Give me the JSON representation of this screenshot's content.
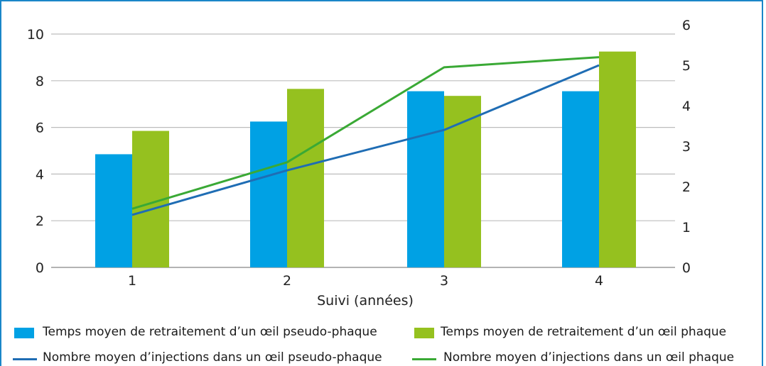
{
  "chart_data": {
    "type": "bar",
    "xlabel": "Suivi (années)",
    "categories": [
      "1",
      "2",
      "3",
      "4"
    ],
    "yleft": {
      "ticks": [
        "0",
        "2",
        "4",
        "6",
        "8",
        "10"
      ],
      "range": [
        0,
        10
      ]
    },
    "yright": {
      "ticks": [
        "0",
        "1",
        "2",
        "3",
        "4",
        "5",
        "6"
      ],
      "range": [
        0,
        6
      ]
    },
    "bar_series": [
      {
        "name": "Temps moyen de retraitement d’un œil pseudo-phaque",
        "color": "#00a1e4",
        "values": [
          4.85,
          6.25,
          7.55,
          7.55
        ]
      },
      {
        "name": "Temps moyen de retraitement d’un œil phaque",
        "color": "#95c11f",
        "values": [
          5.85,
          7.65,
          7.35,
          9.25
        ]
      }
    ],
    "line_series": [
      {
        "name": "Nombre moyen d’injections dans un œil pseudo-phaque",
        "color": "#1f6db4",
        "axis": "right",
        "values": [
          1.3,
          2.4,
          3.4,
          5.0
        ]
      },
      {
        "name": "Nombre moyen d’injections dans un œil phaque",
        "color": "#3aa935",
        "axis": "right",
        "values": [
          1.45,
          2.6,
          4.95,
          5.2
        ]
      }
    ],
    "grid": true,
    "legend_position": "bottom"
  }
}
